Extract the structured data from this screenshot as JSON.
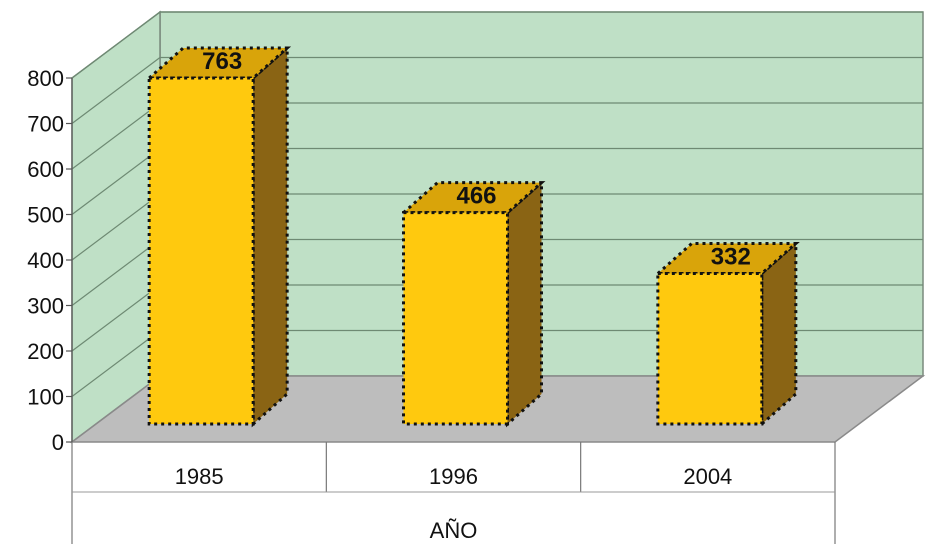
{
  "chart_data": {
    "type": "bar",
    "categories": [
      "1985",
      "1996",
      "2004"
    ],
    "values": [
      763,
      466,
      332
    ],
    "data_labels": [
      "763",
      "466",
      "332"
    ],
    "xlabel": "AÑO",
    "ylabel": "",
    "ylim": [
      0,
      800
    ],
    "y_ticks": [
      "0",
      "100",
      "200",
      "300",
      "400",
      "500",
      "600",
      "700",
      "800"
    ],
    "grid": true,
    "colors": {
      "bar_front": "#FFC90E",
      "bar_top": "#D9A40A",
      "bar_side": "#8A6414",
      "back_wall": "#BFE0C6",
      "side_wall": "#BFE0C6",
      "floor": "#BDBDBD",
      "gridline": "#6E8A73"
    }
  }
}
